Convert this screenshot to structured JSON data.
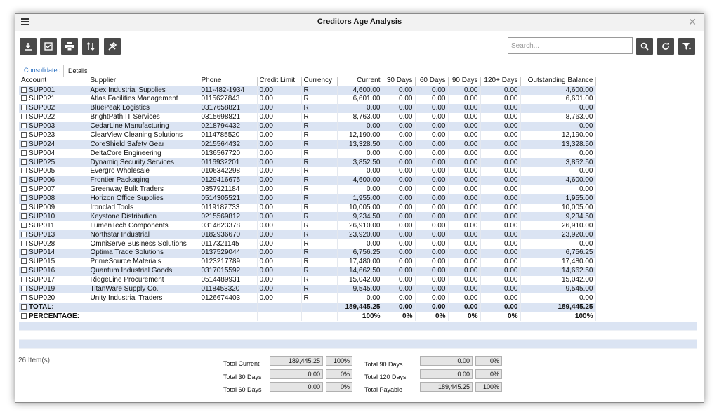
{
  "window": {
    "title": "Creditors Age Analysis"
  },
  "toolbar": {
    "buttons": [
      {
        "name": "download-button",
        "icon": "download-icon"
      },
      {
        "name": "select-all-button",
        "icon": "checkbox-icon"
      },
      {
        "name": "print-button",
        "icon": "printer-icon"
      },
      {
        "name": "sort-button",
        "icon": "sort-icon"
      },
      {
        "name": "tools-button",
        "icon": "tools-icon"
      }
    ],
    "search_placeholder": "Search...",
    "right_buttons": [
      {
        "name": "search-button",
        "icon": "search-icon"
      },
      {
        "name": "refresh-button",
        "icon": "refresh-icon"
      },
      {
        "name": "filter-button",
        "icon": "filter-icon"
      }
    ]
  },
  "tabs": [
    {
      "label": "Consolidated",
      "active": true
    },
    {
      "label": "Details",
      "active": false
    }
  ],
  "columns": [
    "Account",
    "Supplier",
    "Phone",
    "Credit Limit",
    "Currency",
    "Current",
    "30 Days",
    "60 Days",
    "90 Days",
    "120+ Days",
    "Outstanding Balance"
  ],
  "rows": [
    [
      "SUP001",
      "Apex Industrial Supplies",
      "011-482-1934",
      "0.00",
      "R",
      "4,600.00",
      "0.00",
      "0.00",
      "0.00",
      "0.00",
      "4,600.00"
    ],
    [
      "SUP021",
      "Atlas Facilities Management",
      "0115627843",
      "0.00",
      "R",
      "6,601.00",
      "0.00",
      "0.00",
      "0.00",
      "0.00",
      "6,601.00"
    ],
    [
      "SUP002",
      "BluePeak Logistics",
      "0317658821",
      "0.00",
      "R",
      "0.00",
      "0.00",
      "0.00",
      "0.00",
      "0.00",
      "0.00"
    ],
    [
      "SUP022",
      "BrightPath IT Services",
      "0315698821",
      "0.00",
      "R",
      "8,763.00",
      "0.00",
      "0.00",
      "0.00",
      "0.00",
      "8,763.00"
    ],
    [
      "SUP003",
      "CedarLine Manufacturing",
      "0218794432",
      "0.00",
      "R",
      "0.00",
      "0.00",
      "0.00",
      "0.00",
      "0.00",
      "0.00"
    ],
    [
      "SUP023",
      "ClearView Cleaning Solutions",
      "0114785520",
      "0.00",
      "R",
      "12,190.00",
      "0.00",
      "0.00",
      "0.00",
      "0.00",
      "12,190.00"
    ],
    [
      "SUP024",
      "CoreShield Safety Gear",
      "0215564432",
      "0.00",
      "R",
      "13,328.50",
      "0.00",
      "0.00",
      "0.00",
      "0.00",
      "13,328.50"
    ],
    [
      "SUP004",
      "DeltaCore Engineering",
      "0136567720",
      "0.00",
      "R",
      "0.00",
      "0.00",
      "0.00",
      "0.00",
      "0.00",
      "0.00"
    ],
    [
      "SUP025",
      "Dynamiq Security Services",
      "0116932201",
      "0.00",
      "R",
      "3,852.50",
      "0.00",
      "0.00",
      "0.00",
      "0.00",
      "3,852.50"
    ],
    [
      "SUP005",
      "Evergro Wholesale",
      "0106342298",
      "0.00",
      "R",
      "0.00",
      "0.00",
      "0.00",
      "0.00",
      "0.00",
      "0.00"
    ],
    [
      "SUP006",
      "Frontier Packaging",
      "0129416675",
      "0.00",
      "R",
      "4,600.00",
      "0.00",
      "0.00",
      "0.00",
      "0.00",
      "4,600.00"
    ],
    [
      "SUP007",
      "Greenway Bulk Traders",
      "0357921184",
      "0.00",
      "R",
      "0.00",
      "0.00",
      "0.00",
      "0.00",
      "0.00",
      "0.00"
    ],
    [
      "SUP008",
      "Horizon Office Supplies",
      "0514305521",
      "0.00",
      "R",
      "1,955.00",
      "0.00",
      "0.00",
      "0.00",
      "0.00",
      "1,955.00"
    ],
    [
      "SUP009",
      "Ironclad Tools",
      "0119187733",
      "0.00",
      "R",
      "10,005.00",
      "0.00",
      "0.00",
      "0.00",
      "0.00",
      "10,005.00"
    ],
    [
      "SUP010",
      "Keystone Distribution",
      "0215569812",
      "0.00",
      "R",
      "9,234.50",
      "0.00",
      "0.00",
      "0.00",
      "0.00",
      "9,234.50"
    ],
    [
      "SUP011",
      "LumenTech Components",
      "0314623378",
      "0.00",
      "R",
      "26,910.00",
      "0.00",
      "0.00",
      "0.00",
      "0.00",
      "26,910.00"
    ],
    [
      "SUP013",
      "Northstar Industrial",
      "0182936670",
      "0.00",
      "R",
      "23,920.00",
      "0.00",
      "0.00",
      "0.00",
      "0.00",
      "23,920.00"
    ],
    [
      "SUP028",
      "OmniServe Business Solutions",
      "0117321145",
      "0.00",
      "R",
      "0.00",
      "0.00",
      "0.00",
      "0.00",
      "0.00",
      "0.00"
    ],
    [
      "SUP014",
      "Optima Trade Solutions",
      "0137529044",
      "0.00",
      "R",
      "6,756.25",
      "0.00",
      "0.00",
      "0.00",
      "0.00",
      "6,756.25"
    ],
    [
      "SUP015",
      "PrimeSource Materials",
      "0123217789",
      "0.00",
      "R",
      "17,480.00",
      "0.00",
      "0.00",
      "0.00",
      "0.00",
      "17,480.00"
    ],
    [
      "SUP016",
      "Quantum Industrial Goods",
      "0317015592",
      "0.00",
      "R",
      "14,662.50",
      "0.00",
      "0.00",
      "0.00",
      "0.00",
      "14,662.50"
    ],
    [
      "SUP017",
      "RidgeLine Procurement",
      "0514489931",
      "0.00",
      "R",
      "15,042.00",
      "0.00",
      "0.00",
      "0.00",
      "0.00",
      "15,042.00"
    ],
    [
      "SUP019",
      "TitanWare Supply Co.",
      "0118453320",
      "0.00",
      "R",
      "9,545.00",
      "0.00",
      "0.00",
      "0.00",
      "0.00",
      "9,545.00"
    ],
    [
      "SUP020",
      "Unity Industrial Traders",
      "0126674403",
      "0.00",
      "R",
      "0.00",
      "0.00",
      "0.00",
      "0.00",
      "0.00",
      "0.00"
    ]
  ],
  "total_row": [
    "TOTAL:",
    "",
    "",
    "",
    "",
    "189,445.25",
    "0.00",
    "0.00",
    "0.00",
    "0.00",
    "189,445.25"
  ],
  "percentage_row": [
    "PERCENTAGE:",
    "",
    "",
    "",
    "",
    "100%",
    "0%",
    "0%",
    "0%",
    "0%",
    "100%"
  ],
  "item_count": "26 Item(s)",
  "summary": {
    "total_current": {
      "label": "Total Current",
      "value": "189,445.25",
      "pct": "100%"
    },
    "total_30": {
      "label": "Total 30 Days",
      "value": "0.00",
      "pct": "0%"
    },
    "total_60": {
      "label": "Total 60 Days",
      "value": "0.00",
      "pct": "0%"
    },
    "total_90": {
      "label": "Total 90 Days",
      "value": "0.00",
      "pct": "0%"
    },
    "total_120": {
      "label": "Total 120 Days",
      "value": "0.00",
      "pct": "0%"
    },
    "total_payable": {
      "label": "Total Payable",
      "value": "189,445.25",
      "pct": "100%"
    }
  },
  "colors": {
    "row_alt": "#dbe4f3",
    "toolbar_button": "#4a4a4a",
    "active_tab": "#2a6fc0"
  }
}
